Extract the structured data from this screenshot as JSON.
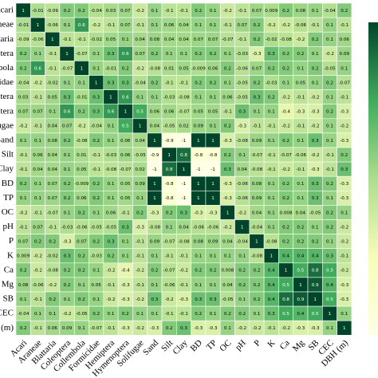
{
  "chart_data": {
    "type": "heatmap",
    "categories": [
      "Acari",
      "Araneae",
      "Blattaria",
      "Coleoptera",
      "Collembola",
      "Formicidae",
      "Hemiptera",
      "Hymenoptera",
      "Solifugae",
      "Sand",
      "Silt",
      "Clay",
      "BD",
      "TP",
      "OC",
      "pH",
      "P",
      "K",
      "Ca",
      "Mg",
      "SB",
      "CEC",
      "DBH (m)"
    ],
    "zlim": [
      -1,
      1
    ],
    "colormap": [
      "#ffffe5",
      "#f7fcb9",
      "#addd8e",
      "#41ab5d",
      "#004529"
    ],
    "colorbar": true,
    "values": [
      [
        1,
        -0.01,
        -0.09,
        0.2,
        0.2,
        -0.04,
        0.03,
        0.07,
        -0.2,
        0.1,
        -0.1,
        -0.1,
        0.2,
        0.1,
        -0.2,
        -0.1,
        0.07,
        0.009,
        0.2,
        0.08,
        0.1,
        -0.04,
        0.2
      ],
      [
        -0.01,
        1,
        -0.06,
        0.1,
        0.6,
        -0.2,
        -0.1,
        0.07,
        -0.1,
        0.1,
        0.06,
        0.04,
        0.1,
        0.1,
        -0.1,
        0.07,
        0.2,
        -0.2,
        -0.2,
        -0.06,
        -0.1,
        0.1,
        -0.1
      ],
      [
        -0.09,
        -0.06,
        1,
        -0.1,
        -0.1,
        -0.02,
        0.05,
        0.1,
        0.04,
        0.08,
        0.04,
        0.04,
        0.07,
        0.07,
        -0.07,
        -0.1,
        0.2,
        -0.02,
        -0.08,
        -0.2,
        0.2,
        0.1,
        0.06
      ],
      [
        0.2,
        0.1,
        -0.1,
        1,
        -0.07,
        0.1,
        0.3,
        0.6,
        0.07,
        0.2,
        0.1,
        0.1,
        0.2,
        0.2,
        0.1,
        -0.03,
        -0.3,
        0.3,
        0.2,
        0.2,
        0.1,
        -0.2,
        0.09
      ],
      [
        0.2,
        0.6,
        -0.1,
        -0.07,
        1,
        0.1,
        -0.01,
        0.2,
        -0.2,
        -0.08,
        0.01,
        0.05,
        -0.009,
        0.06,
        0.2,
        -0.06,
        0.07,
        0.2,
        0.2,
        0.1,
        0.2,
        -0.05,
        0.1
      ],
      [
        -0.04,
        -0.2,
        -0.02,
        0.1,
        0.1,
        1,
        0.3,
        0.3,
        -0.04,
        0.2,
        -0.1,
        -0.1,
        0.2,
        0.2,
        0.1,
        -0.05,
        0.2,
        -0.03,
        0.1,
        0.05,
        0.1,
        0.2,
        -0.07
      ],
      [
        0.03,
        -0.1,
        0.05,
        0.3,
        -0.01,
        0.3,
        1,
        0.6,
        0.1,
        0.1,
        -0.03,
        -0.08,
        0.1,
        0.1,
        0.06,
        -0.05,
        0.3,
        0.2,
        -0.2,
        -0.1,
        -0.2,
        0.1,
        -0.1
      ],
      [
        0.07,
        0.07,
        0.1,
        0.6,
        0.2,
        0.3,
        0.6,
        1,
        0.5,
        0.06,
        0.06,
        -0.07,
        0.05,
        0.05,
        -0.1,
        0.3,
        0.1,
        0.1,
        -0.4,
        -0.3,
        -0.3,
        0.2,
        -0.3
      ],
      [
        -0.2,
        -0.1,
        0.04,
        0.07,
        -0.2,
        -0.04,
        0.1,
        0.5,
        1,
        0.04,
        -0.05,
        0.02,
        0.09,
        0.1,
        0.2,
        -0.3,
        -0.1,
        -0.1,
        -0.2,
        -0.1,
        -0.2,
        0.1,
        -0.2
      ],
      [
        0.1,
        0.1,
        0.08,
        0.2,
        -0.08,
        0.2,
        0.1,
        0.06,
        0.04,
        1,
        -0.9,
        -1,
        1,
        1,
        -0.3,
        -0.08,
        0.09,
        0.1,
        0.2,
        0.1,
        0.3,
        0.1,
        -0.3
      ],
      [
        -0.1,
        0.06,
        0.04,
        0.1,
        0.01,
        -0.1,
        -0.03,
        0.06,
        -0.05,
        -0.9,
        1,
        0.8,
        -0.8,
        -0.8,
        0.2,
        0.1,
        -0.07,
        -0.1,
        -0.07,
        -0.06,
        -0.2,
        -0.1,
        0.2
      ],
      [
        -0.1,
        0.04,
        0.04,
        0.1,
        0.05,
        -0.1,
        -0.08,
        -0.07,
        0.02,
        -1,
        0.8,
        1,
        -1,
        -1,
        0.3,
        0.04,
        -0.08,
        -0.1,
        -0.2,
        -0.1,
        -0.3,
        -0.1,
        0.3
      ],
      [
        0.2,
        0.1,
        0.07,
        0.2,
        -0.009,
        0.2,
        0.1,
        0.05,
        0.09,
        1,
        -0.8,
        -1,
        1,
        1,
        -0.3,
        -0.06,
        0.08,
        0.1,
        0.2,
        0.1,
        0.3,
        0.2,
        -0.3
      ],
      [
        0.1,
        0.1,
        0.07,
        0.2,
        0.06,
        0.2,
        0.1,
        0.05,
        0.1,
        1,
        -0.8,
        -1,
        1,
        1,
        -0.3,
        -0.06,
        0.09,
        0.1,
        0.2,
        0.1,
        0.3,
        0.1,
        -0.3
      ],
      [
        -0.2,
        -0.1,
        -0.07,
        0.1,
        0.2,
        0.1,
        0.06,
        -0.1,
        0.2,
        -0.3,
        0.2,
        0.3,
        -0.3,
        -0.3,
        1,
        -0.2,
        0.04,
        0.1,
        0.008,
        0.04,
        -0.05,
        0.2,
        0.1
      ],
      [
        -0.1,
        0.07,
        -0.1,
        -0.03,
        -0.06,
        -0.05,
        -0.05,
        0.3,
        -0.3,
        -0.08,
        0.1,
        0.04,
        -0.06,
        -0.06,
        -0.2,
        1,
        -0.04,
        0.1,
        0.2,
        0.2,
        0.1,
        0.2,
        -0.2
      ],
      [
        0.07,
        0.2,
        0.2,
        -0.3,
        0.07,
        0.2,
        0.3,
        0.1,
        -0.1,
        0.09,
        -0.07,
        -0.08,
        0.08,
        0.09,
        0.04,
        -0.04,
        1,
        -0.08,
        0.2,
        0.2,
        0.2,
        0.1,
        -0.2
      ],
      [
        0.009,
        -0.2,
        -0.02,
        0.3,
        0.2,
        -0.03,
        0.2,
        0.1,
        -0.1,
        0.1,
        -0.1,
        -0.1,
        0.1,
        0.1,
        0.1,
        0.1,
        -0.08,
        1,
        0.4,
        0.4,
        0.4,
        0.3,
        -0.1
      ],
      [
        0.2,
        -0.2,
        -0.08,
        0.2,
        0.2,
        0.1,
        -0.2,
        -0.4,
        -0.2,
        0.2,
        -0.07,
        -0.2,
        0.2,
        0.2,
        0.008,
        0.2,
        0.2,
        0.4,
        1,
        0.5,
        0.8,
        0.5,
        -0.2
      ],
      [
        0.08,
        -0.06,
        -0.2,
        0.2,
        0.1,
        0.05,
        -0.1,
        -0.3,
        -0.1,
        0.1,
        -0.06,
        -0.1,
        0.1,
        0.1,
        0.04,
        0.2,
        0.2,
        0.4,
        0.5,
        1,
        0.9,
        0.4,
        -0.3
      ],
      [
        0.1,
        -0.1,
        0.2,
        0.1,
        0.2,
        0.1,
        -0.2,
        -0.3,
        -0.2,
        0.3,
        -0.2,
        -0.3,
        0.3,
        0.3,
        -0.05,
        0.1,
        0.2,
        0.4,
        0.8,
        0.9,
        1,
        0.5,
        -0.3
      ],
      [
        -0.04,
        0.1,
        0.1,
        -0.2,
        -0.05,
        0.2,
        0.1,
        0.2,
        0.1,
        0.1,
        -0.1,
        -0.1,
        0.2,
        0.1,
        0.2,
        0.2,
        0.1,
        0.3,
        0.5,
        0.4,
        0.5,
        1,
        0.1
      ],
      [
        0.2,
        -0.1,
        0.06,
        0.09,
        0.1,
        -0.07,
        -0.1,
        -0.3,
        -0.2,
        -0.3,
        0.2,
        0.3,
        -0.3,
        -0.3,
        0.1,
        -0.2,
        -0.2,
        -0.1,
        -0.2,
        -0.3,
        -0.3,
        0.1,
        1
      ]
    ]
  }
}
